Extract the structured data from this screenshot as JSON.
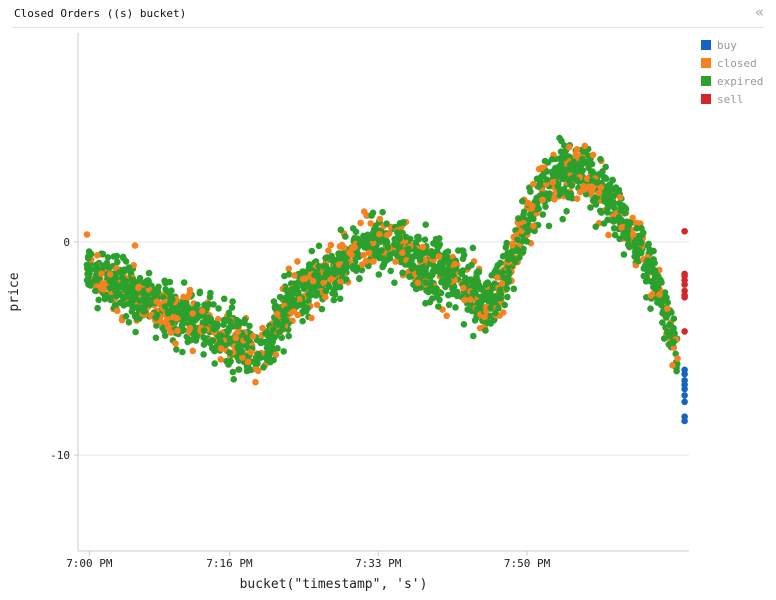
{
  "panel": {
    "title": "Closed Orders ((s) bucket)",
    "collapse_icon": "«"
  },
  "chart_data": {
    "type": "scatter",
    "title": "Closed Orders ((s) bucket)",
    "xlabel": "bucket(\"timestamp\", 's')",
    "ylabel": "price",
    "x_unit": "minutes",
    "x_ticks": [
      {
        "value": 0,
        "label": "7:00 PM"
      },
      {
        "value": 16,
        "label": "7:16 PM"
      },
      {
        "value": 33,
        "label": "7:33 PM"
      },
      {
        "value": 50,
        "label": "7:50 PM"
      }
    ],
    "y_ticks": [
      {
        "value": 0,
        "label": "0"
      },
      {
        "value": -10,
        "label": "-10"
      }
    ],
    "xlim": [
      -1.3,
      68.5
    ],
    "ylim": [
      -14.5,
      9.8
    ],
    "grid": true,
    "legend_position": "right",
    "series": [
      {
        "name": "buy",
        "color": "#1565c0"
      },
      {
        "name": "closed",
        "color": "#f5821f"
      },
      {
        "name": "expired",
        "color": "#2ca02c"
      },
      {
        "name": "sell",
        "color": "#d62728"
      }
    ],
    "trend": [
      [
        0,
        -1.3
      ],
      [
        2,
        -1.8
      ],
      [
        5,
        -2.4
      ],
      [
        8,
        -3.0
      ],
      [
        12,
        -3.6
      ],
      [
        15,
        -4.4
      ],
      [
        18,
        -5.0
      ],
      [
        20,
        -5.2
      ],
      [
        22,
        -3.2
      ],
      [
        25,
        -2.0
      ],
      [
        28,
        -1.3
      ],
      [
        30,
        -0.6
      ],
      [
        33,
        0.0
      ],
      [
        36,
        -0.4
      ],
      [
        38,
        -1.1
      ],
      [
        41,
        -1.6
      ],
      [
        44,
        -2.3
      ],
      [
        46,
        -3.0
      ],
      [
        48,
        -1.2
      ],
      [
        50,
        1.2
      ],
      [
        52,
        2.5
      ],
      [
        55,
        3.5
      ],
      [
        57,
        3.2
      ],
      [
        59,
        2.2
      ],
      [
        61,
        1.0
      ],
      [
        63,
        -0.5
      ],
      [
        65,
        -2.0
      ],
      [
        66,
        -3.5
      ],
      [
        67,
        -5.3
      ]
    ],
    "sell_points": [
      [
        68.0,
        0.5
      ],
      [
        68.0,
        -1.5
      ],
      [
        68.0,
        -1.6
      ],
      [
        68.0,
        -1.8
      ],
      [
        68.0,
        -2.0
      ],
      [
        68.0,
        -2.3
      ],
      [
        68.0,
        -2.5
      ],
      [
        68.0,
        -2.6
      ],
      [
        68.0,
        -4.2
      ]
    ],
    "buy_points": [
      [
        68.0,
        -6.0
      ],
      [
        68.0,
        -6.2
      ],
      [
        68.0,
        -6.5
      ],
      [
        68.0,
        -6.7
      ],
      [
        68.0,
        -6.9
      ],
      [
        68.0,
        -7.2
      ],
      [
        68.0,
        -7.5
      ],
      [
        68.0,
        -8.2
      ],
      [
        68.0,
        -8.4
      ]
    ]
  }
}
